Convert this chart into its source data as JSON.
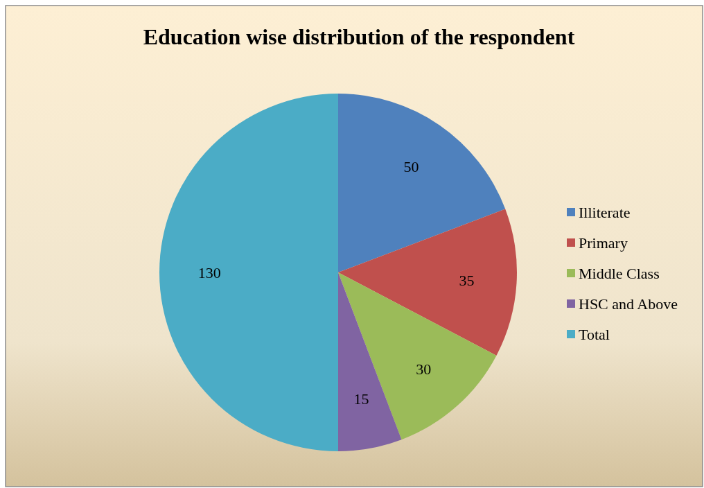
{
  "chart_data": {
    "type": "pie",
    "title": "Education wise distribution of the respondent",
    "categories": [
      "Illiterate",
      "Primary",
      "Middle Class",
      "HSC and Above",
      "Total"
    ],
    "values": [
      50,
      35,
      30,
      15,
      130
    ],
    "colors": [
      "#4f81bd",
      "#c0504d",
      "#9bbb59",
      "#8064a2",
      "#4bacc6"
    ],
    "data_labels": true,
    "legend": "right"
  }
}
